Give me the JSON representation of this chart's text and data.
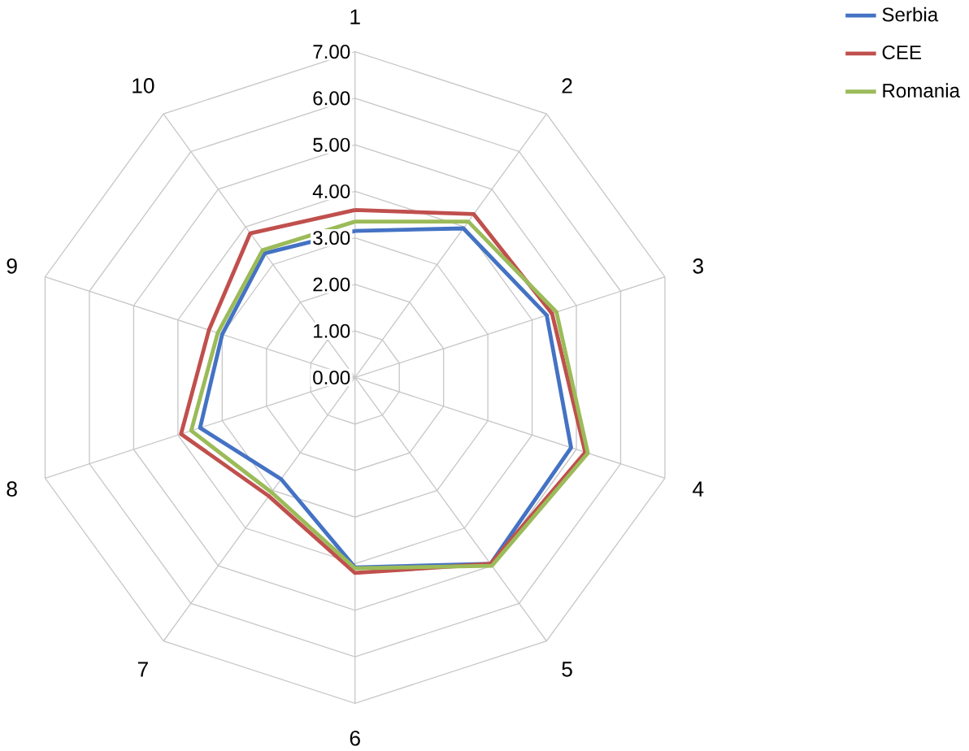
{
  "chart_data": {
    "type": "radar",
    "categories": [
      "1",
      "2",
      "3",
      "4",
      "5",
      "6",
      "7",
      "8",
      "9",
      "10"
    ],
    "series": [
      {
        "name": "Serbia",
        "color": "#4472c4",
        "values": [
          3.15,
          3.96,
          4.33,
          4.88,
          4.95,
          4.08,
          2.7,
          3.5,
          3.0,
          3.3
        ]
      },
      {
        "name": "CEE",
        "color": "#c0504d",
        "values": [
          3.6,
          4.34,
          4.45,
          5.2,
          4.95,
          4.2,
          3.15,
          3.93,
          3.3,
          3.83
        ]
      },
      {
        "name": "Romania",
        "color": "#9bbb59",
        "values": [
          3.35,
          4.14,
          4.55,
          5.26,
          5.0,
          4.1,
          3.05,
          3.7,
          3.1,
          3.38
        ]
      }
    ],
    "ylim": [
      0,
      7
    ],
    "yticks": [
      {
        "value": 0,
        "label": "0.00"
      },
      {
        "value": 1,
        "label": "1.00"
      },
      {
        "value": 2,
        "label": "2.00"
      },
      {
        "value": 3,
        "label": "3.00"
      },
      {
        "value": 4,
        "label": "4.00"
      },
      {
        "value": 5,
        "label": "5.00"
      },
      {
        "value": 6,
        "label": "6.00"
      },
      {
        "value": 7,
        "label": "7.00"
      }
    ],
    "grid": true,
    "legend": "top right"
  }
}
